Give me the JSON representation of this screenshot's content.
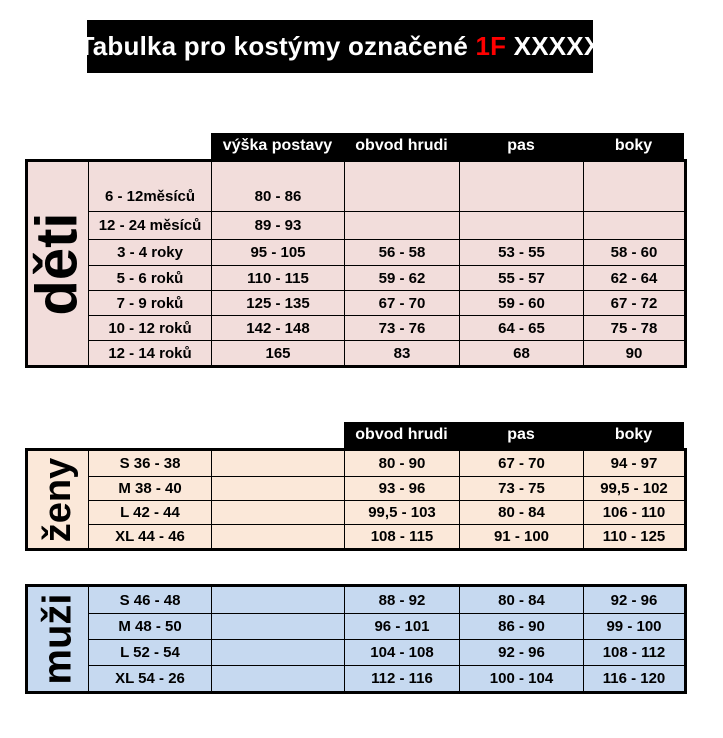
{
  "title": {
    "prefix": "Tabulka pro kostýmy označené ",
    "highlight": "1F",
    "suffix": " XXXXX"
  },
  "colors": {
    "title_bg": "#000000",
    "title_text": "#ffffff",
    "highlight_red": "#ff0000",
    "header_bg": "#000000",
    "header_text": "#ffffff",
    "border": "#000000",
    "deti_bg": "#f2dddb",
    "zeny_bg": "#fbe8d9",
    "muzi_bg": "#c6d9f0"
  },
  "column_headers_full": [
    "výška postavy",
    "obvod hrudi",
    "pas",
    "boky"
  ],
  "tables": [
    {
      "id": "deti",
      "label": "děti",
      "header": [
        "výška postavy",
        "obvod hrudi",
        "pas",
        "boky"
      ],
      "rows": [
        [
          "6 - 12měsíců",
          "80 - 86",
          "",
          "",
          ""
        ],
        [
          "12 - 24 měsíců",
          "89 - 93",
          "",
          "",
          ""
        ],
        [
          "3 - 4 roky",
          "95 - 105",
          "56 - 58",
          "53 - 55",
          "58 - 60"
        ],
        [
          "5 - 6 roků",
          "110 - 115",
          "59 - 62",
          "55 - 57",
          "62 - 64"
        ],
        [
          "7 - 9 roků",
          "125 - 135",
          "67 - 70",
          "59 - 60",
          "67 - 72"
        ],
        [
          "10 - 12 roků",
          "142 - 148",
          "73 - 76",
          "64 - 65",
          "75 - 78"
        ],
        [
          "12 - 14 roků",
          "165",
          "83",
          "68",
          "90"
        ]
      ]
    },
    {
      "id": "zeny",
      "label": "ženy",
      "header": [
        "obvod hrudi",
        "pas",
        "boky"
      ],
      "rows": [
        [
          "S 36 - 38",
          "",
          "80 - 90",
          "67 - 70",
          "94 - 97"
        ],
        [
          "M 38 - 40",
          "",
          "93 - 96",
          "73 - 75",
          "99,5 - 102"
        ],
        [
          "L 42 - 44",
          "",
          "99,5 - 103",
          "80 - 84",
          "106 - 110"
        ],
        [
          "XL 44 - 46",
          "",
          "108 - 115",
          "91 - 100",
          "110 - 125"
        ]
      ]
    },
    {
      "id": "muzi",
      "label": "muži",
      "header": [],
      "rows": [
        [
          "S 46 - 48",
          "",
          "88 - 92",
          "80 - 84",
          "92 - 96"
        ],
        [
          "M 48 - 50",
          "",
          "96 - 101",
          "86 - 90",
          "99 - 100"
        ],
        [
          "L 52 - 54",
          "",
          "104 - 108",
          "92 - 96",
          "108 - 112"
        ],
        [
          "XL 54 - 26",
          "",
          "112 - 116",
          "100 - 104",
          "116 - 120"
        ]
      ]
    }
  ]
}
